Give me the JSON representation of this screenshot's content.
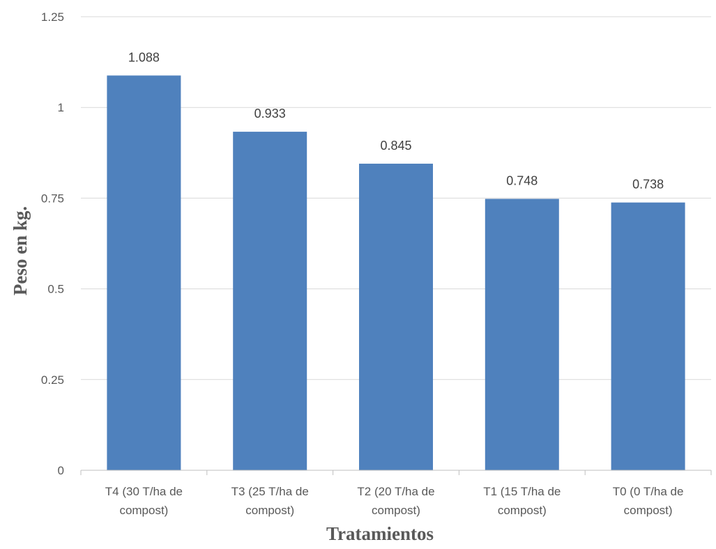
{
  "chart_data": {
    "type": "bar",
    "categories": [
      [
        "T4 (30 T/ha de",
        "compost)"
      ],
      [
        "T3 (25 T/ha de",
        "compost)"
      ],
      [
        "T2 (20 T/ha de",
        "compost)"
      ],
      [
        "T1 (15 T/ha de",
        "compost)"
      ],
      [
        "T0 (0 T/ha de",
        "compost)"
      ]
    ],
    "values": [
      1.088,
      0.933,
      0.845,
      0.748,
      0.738
    ],
    "data_labels": [
      "1.088",
      "0.933",
      "0.845",
      "0.748",
      "0.738"
    ],
    "title": "",
    "xlabel": "Tratamientos",
    "ylabel": "Peso en kg.",
    "ylim": [
      0,
      1.25
    ],
    "yticks": [
      0,
      0.25,
      0.5,
      0.75,
      1,
      1.25
    ],
    "ytick_labels": [
      "0",
      "0.25",
      "0.5",
      "0.75",
      "1",
      "1.25"
    ],
    "grid": true,
    "legend": "none",
    "colors": {
      "bar": "#4f81bd",
      "grid": "#d9d9d9",
      "axis": "#bfbfbf"
    }
  }
}
